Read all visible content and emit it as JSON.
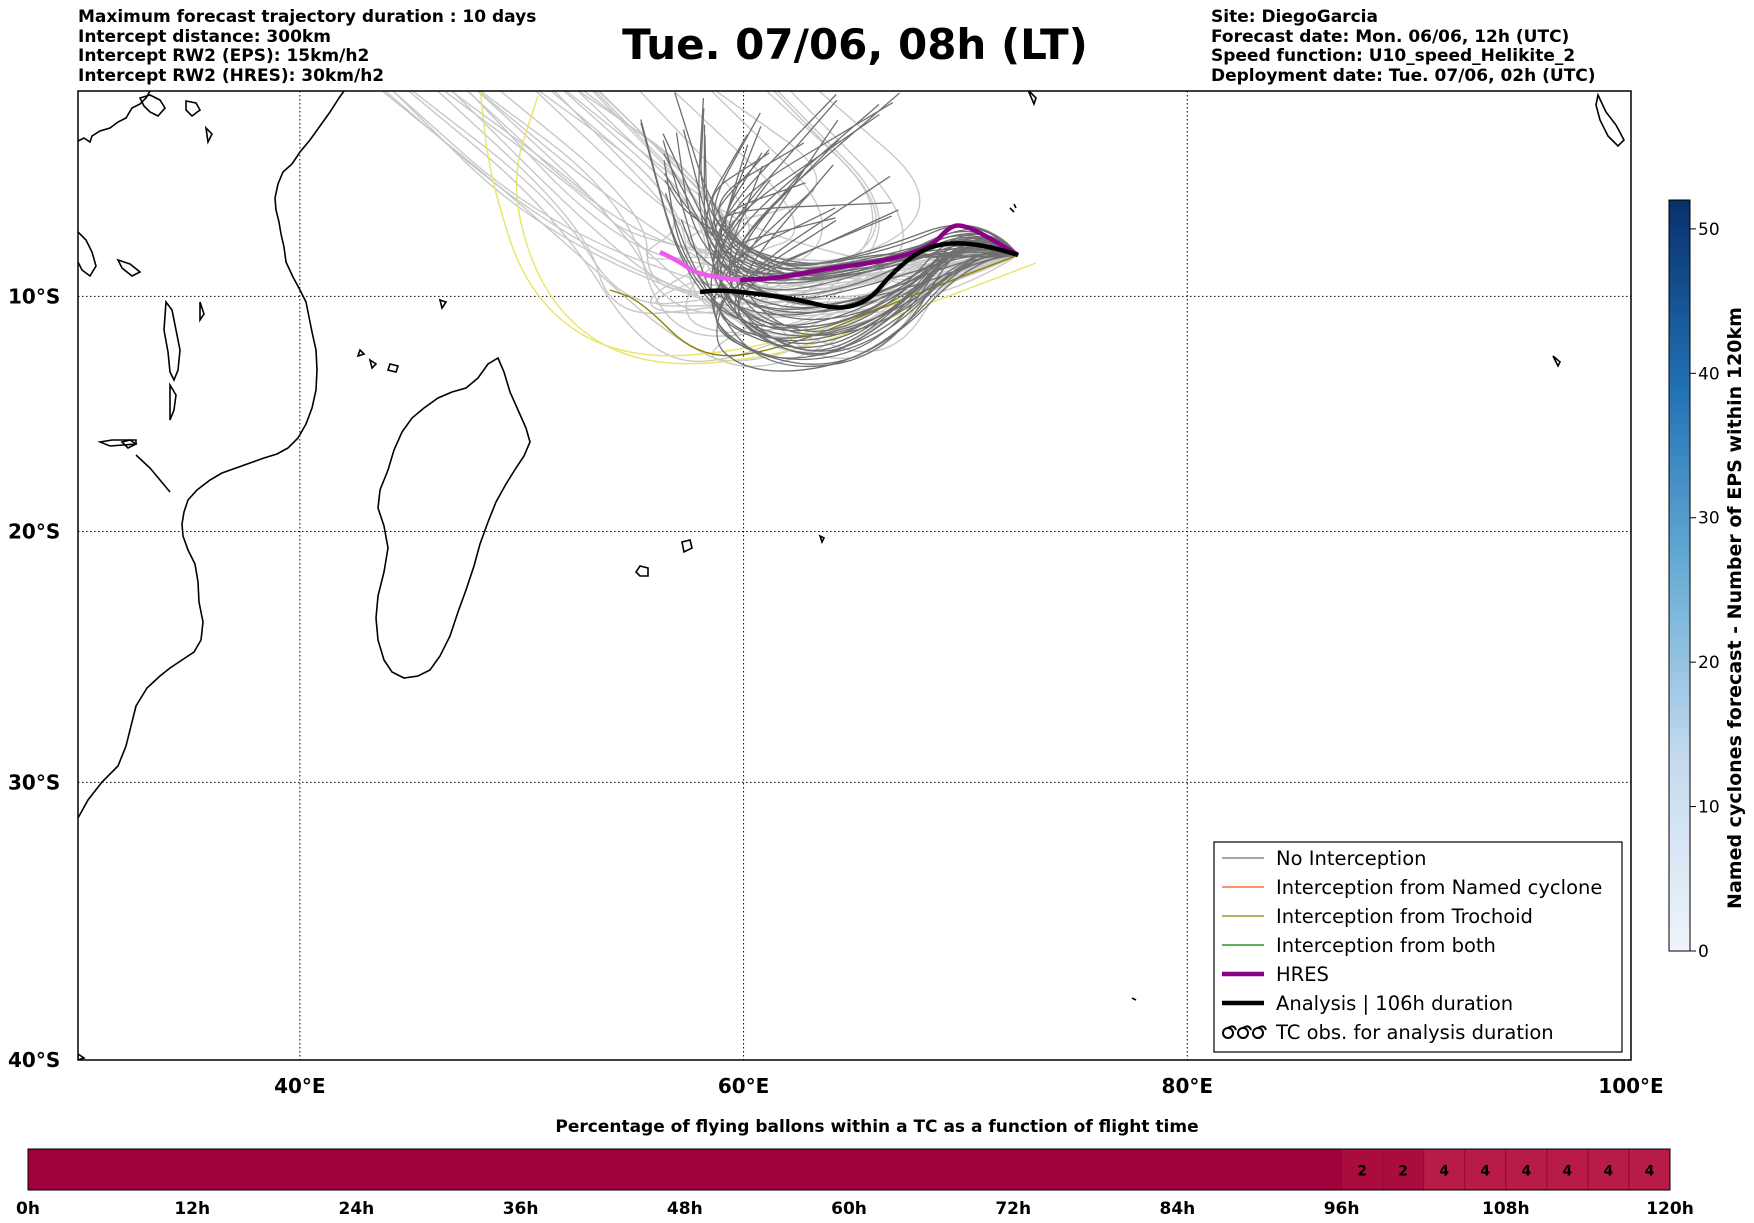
{
  "header": {
    "left_lines": [
      "Maximum forecast trajectory duration : 10 days",
      "Intercept distance: 300km",
      "Intercept RW2 (EPS):  15km/h2",
      "Intercept RW2 (HRES): 30km/h2"
    ],
    "title": "Tue. 07/06, 08h (LT)",
    "right_lines": [
      "Site: DiegoGarcia",
      "Forecast date: Mon. 06/06, 12h (UTC)",
      "Speed function: U10_speed_Helikite_2",
      "Deployment date: Tue. 07/06, 02h (UTC)"
    ]
  },
  "map": {
    "lon_range": [
      30,
      100
    ],
    "lat_range": [
      -40,
      -1
    ],
    "lon_ticks": [
      {
        "value": 40,
        "label": "40°E"
      },
      {
        "value": 60,
        "label": "60°E"
      },
      {
        "value": 80,
        "label": "80°E"
      },
      {
        "value": 100,
        "label": "100°E"
      }
    ],
    "lat_ticks": [
      {
        "value": -10,
        "label": "10°S"
      },
      {
        "value": -20,
        "label": "20°S"
      },
      {
        "value": -30,
        "label": "30°S"
      },
      {
        "value": -40,
        "label": "40°S"
      }
    ],
    "colors": {
      "no_interception": "#707070",
      "named_cyclone": "#ff5010",
      "trochoid": "#8b8000",
      "both": "#008000",
      "hres": "#8b008b",
      "hres_early": "#ee5aee",
      "analysis": "#000000",
      "late_trajectory": "#c8c8c8",
      "trochoid_late": "#e9e46a"
    }
  },
  "legend": {
    "items": [
      {
        "label": "No Interception",
        "style": "thin-gray"
      },
      {
        "label": "Interception from Named cyclone",
        "style": "thin-orange"
      },
      {
        "label": "Interception from Trochoid",
        "style": "thin-olive"
      },
      {
        "label": "Interception from both",
        "style": "thin-green"
      },
      {
        "label": "HRES",
        "style": "thick-purple"
      },
      {
        "label": "Analysis | 106h duration",
        "style": "thick-black"
      },
      {
        "label": "TC obs. for analysis duration",
        "style": "tc-symbols"
      }
    ]
  },
  "colorbar": {
    "label": "Named cyclones forecast - Number of EPS within 120km",
    "range": [
      0,
      52
    ],
    "ticks": [
      0,
      10,
      20,
      30,
      40,
      50
    ],
    "color_low": "#deebf7",
    "color_high": "#08306b"
  },
  "timebar": {
    "title": "Percentage of flying ballons within a TC as a function of flight time",
    "tick_labels": [
      "0h",
      "12h",
      "24h",
      "36h",
      "48h",
      "60h",
      "72h",
      "84h",
      "96h",
      "108h",
      "120h"
    ],
    "base_color": "#a0003c",
    "cells": [
      {
        "from": 0,
        "to": 96,
        "value": ""
      },
      {
        "from": 96,
        "to": 99,
        "value": "2"
      },
      {
        "from": 99,
        "to": 102,
        "value": "2"
      },
      {
        "from": 102,
        "to": 105,
        "value": "4"
      },
      {
        "from": 105,
        "to": 108,
        "value": "4"
      },
      {
        "from": 108,
        "to": 111,
        "value": "4"
      },
      {
        "from": 111,
        "to": 114,
        "value": "4"
      },
      {
        "from": 114,
        "to": 117,
        "value": "4"
      },
      {
        "from": 117,
        "to": 120,
        "value": "4"
      }
    ]
  }
}
